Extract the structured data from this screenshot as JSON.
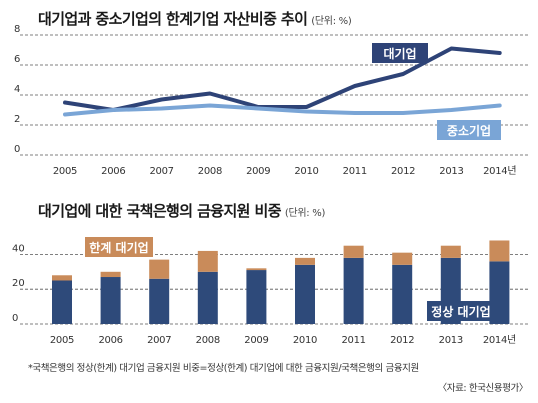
{
  "chart_data": [
    {
      "type": "line",
      "title": "대기업과 중소기업의 한계기업 자산비중 추이",
      "unit": "(단위: %)",
      "categories": [
        "2005",
        "2006",
        "2007",
        "2008",
        "2009",
        "2010",
        "2011",
        "2012",
        "2013",
        "2014년"
      ],
      "ylim": [
        0,
        8
      ],
      "yticks": [
        0,
        2,
        4,
        6,
        8
      ],
      "grid": true,
      "series": [
        {
          "name": "대기업",
          "color": "#2e4377",
          "values": [
            3.5,
            3.0,
            3.7,
            4.1,
            3.2,
            3.2,
            4.6,
            5.4,
            7.1,
            6.8
          ]
        },
        {
          "name": "중소기업",
          "color": "#7aa5d6",
          "values": [
            2.7,
            3.0,
            3.1,
            3.3,
            3.1,
            2.9,
            2.8,
            2.8,
            3.0,
            3.3
          ]
        }
      ]
    },
    {
      "type": "bar",
      "title": "대기업에 대한 국책은행의 금융지원 비중",
      "unit": "(단위: %)",
      "categories": [
        "2005",
        "2006",
        "2007",
        "2008",
        "2009",
        "2010",
        "2011",
        "2012",
        "2013",
        "2014년"
      ],
      "ylim": [
        0,
        50
      ],
      "yticks": [
        0,
        20,
        40
      ],
      "grid": true,
      "stacked": true,
      "series": [
        {
          "name": "정상 대기업",
          "color": "#2e4a7a",
          "values": [
            25,
            27,
            26,
            30,
            31,
            34,
            38,
            34,
            38,
            36
          ]
        },
        {
          "name": "한계 대기업",
          "color": "#c98b5a",
          "values": [
            3,
            3,
            11,
            12,
            1,
            4,
            7,
            7,
            7,
            12
          ]
        }
      ]
    }
  ],
  "note": "*국책은행의 정상(한계) 대기업 금융지원 비중=정상(한계) 대기업에 대한 금융지원/국책은행의 금융지원",
  "source": "〈자료: 한국신용평가〉"
}
